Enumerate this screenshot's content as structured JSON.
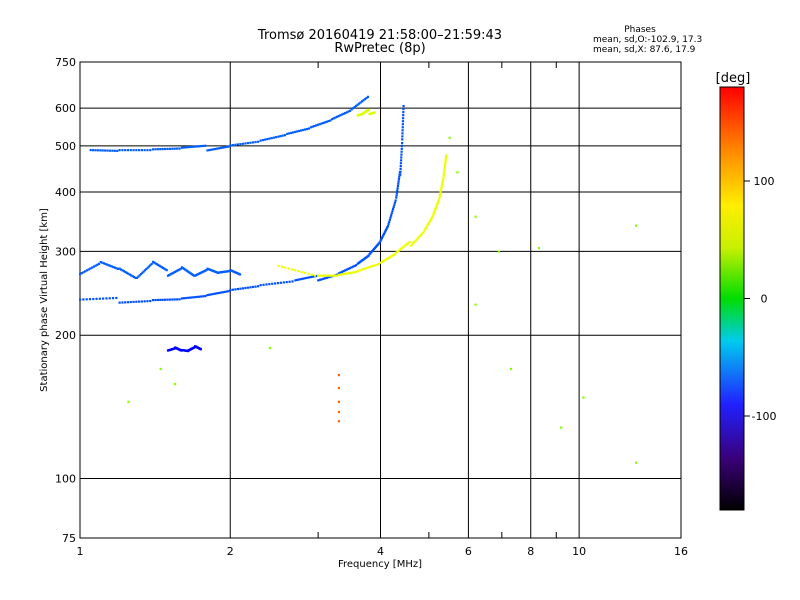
{
  "chart_data": {
    "type": "scatter",
    "title": "Tromsø 20160419 21:58:00–21:59:43",
    "subtitle": "RwPretec (8p)",
    "xlabel": "Frequency [MHz]",
    "ylabel": "Stationary phase Virtual Height [km]",
    "x_scale": "log",
    "y_scale": "log",
    "xlim": [
      1,
      16
    ],
    "ylim": [
      75,
      750
    ],
    "x_ticks": [
      1,
      2,
      4,
      6,
      8,
      10,
      16
    ],
    "x_tick_labels": [
      "1",
      "2",
      "4",
      "6",
      "8",
      "10",
      "16"
    ],
    "x_minor_ticks": [
      3,
      5,
      7,
      9
    ],
    "y_ticks": [
      75,
      100,
      200,
      300,
      400,
      500,
      600,
      750
    ],
    "y_tick_labels": [
      "75",
      "100",
      "200",
      "300",
      "400",
      "500",
      "600",
      "750"
    ],
    "grid": true,
    "stats": {
      "heading": "Phases",
      "line_o": "mean, sd,O:-102.9, 17.3",
      "line_x": "mean, sd,X:  87.6, 17.9"
    },
    "colorbar": {
      "label": "[deg]",
      "min": -180,
      "max": 180,
      "ticks": [
        100,
        0,
        -100
      ],
      "tick_labels": [
        "100",
        "0",
        "-100"
      ]
    },
    "traces": [
      {
        "name": "lower O-mode trace",
        "phase": -115,
        "x": [
          1.0,
          1.2,
          1.4,
          1.6,
          1.8,
          2.0,
          2.3,
          2.7,
          3.0,
          3.3,
          3.6,
          3.8,
          4.0,
          4.15,
          4.3,
          4.38,
          4.42,
          4.45
        ],
        "y": [
          235,
          237,
          239,
          240,
          243,
          248,
          253,
          258,
          264,
          272,
          284,
          296,
          315,
          340,
          385,
          440,
          520,
          620
        ]
      },
      {
        "name": "lower X-mode trace",
        "phase": 95,
        "x": [
          2.5,
          3.0,
          3.3,
          3.6,
          4.0,
          4.3,
          4.6,
          4.9,
          5.1,
          5.25,
          5.35,
          5.42
        ],
        "y": [
          282,
          268,
          268,
          272,
          282,
          295,
          312,
          335,
          360,
          390,
          430,
          480
        ]
      },
      {
        "name": "upper O-mode trace",
        "phase": -110,
        "x": [
          1.05,
          1.2,
          1.4,
          1.6,
          1.8,
          2.0,
          2.3,
          2.6,
          2.9,
          3.2,
          3.5,
          3.8
        ],
        "y": [
          490,
          488,
          488,
          490,
          495,
          505,
          515,
          530,
          545,
          565,
          590,
          630
        ]
      },
      {
        "name": "upper X-mode fragment",
        "phase": 90,
        "x": [
          3.6,
          3.7,
          3.8,
          3.9
        ],
        "y": [
          575,
          580,
          590,
          595
        ]
      },
      {
        "name": "E-region echoes",
        "phase": -140,
        "x": [
          1.5,
          1.55,
          1.6,
          1.65,
          1.7,
          1.75
        ],
        "y": [
          188,
          190,
          187,
          186,
          189,
          186
        ]
      },
      {
        "name": "low-frequency cluster",
        "phase": -110,
        "x": [
          1.0,
          1.1,
          1.2,
          1.3,
          1.4,
          1.5,
          1.6,
          1.7,
          1.8,
          1.9,
          2.0,
          2.1
        ],
        "y": [
          270,
          285,
          275,
          262,
          282,
          270,
          280,
          268,
          276,
          270,
          272,
          266
        ]
      },
      {
        "name": "vertical streak",
        "phase": 150,
        "x": [
          3.3,
          3.3,
          3.3,
          3.3,
          3.3
        ],
        "y": [
          165,
          155,
          145,
          138,
          132
        ]
      },
      {
        "name": "scattered points",
        "phase": 60,
        "x": [
          1.25,
          1.45,
          1.55,
          2.4,
          6.2,
          6.9,
          7.3,
          8.3,
          9.2,
          10.2,
          13.0,
          13.0,
          6.2,
          5.7,
          5.5
        ],
        "y": [
          145,
          170,
          158,
          188,
          355,
          300,
          170,
          305,
          128,
          148,
          340,
          108,
          232,
          440,
          520
        ]
      }
    ]
  }
}
